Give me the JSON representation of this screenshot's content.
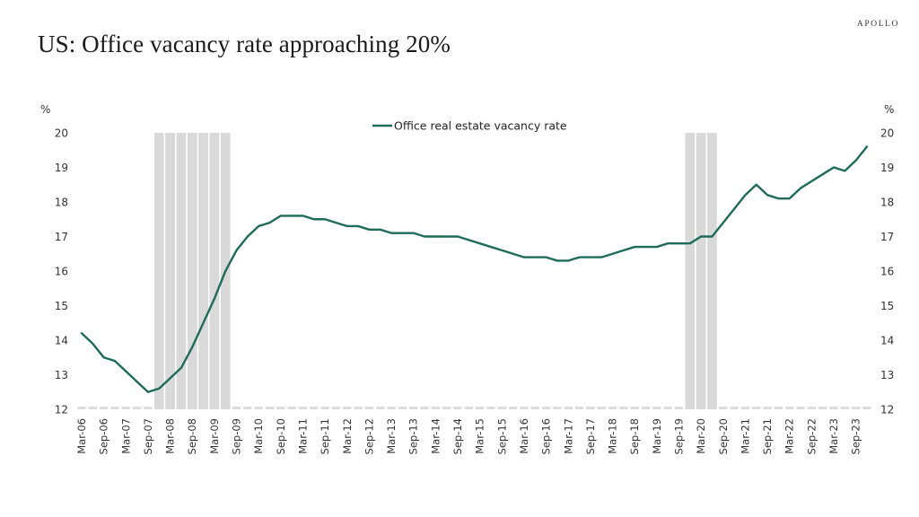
{
  "header": {
    "title": "US: Office vacancy rate approaching 20%",
    "brand": "APOLLO"
  },
  "chart_data": {
    "type": "line",
    "title": "US: Office vacancy rate approaching 20%",
    "xlabel": "",
    "ylabel": "%",
    "ylabel_right": "%",
    "ylim": [
      12,
      20
    ],
    "yticks": [
      12,
      13,
      14,
      15,
      16,
      17,
      18,
      19,
      20
    ],
    "grid": false,
    "legend": {
      "position": "top-center",
      "entries": [
        "Office real estate vacancy rate"
      ]
    },
    "colors": {
      "line": "#1f6b5a",
      "recession": "#d9d9d9"
    },
    "frequency": "quarterly",
    "x_start": "Mar-06",
    "x_end": "Dec-23",
    "xtick_labels": [
      "Mar-06",
      "Sep-06",
      "Mar-07",
      "Sep-07",
      "Mar-08",
      "Sep-08",
      "Mar-09",
      "Sep-09",
      "Mar-10",
      "Sep-10",
      "Mar-11",
      "Sep-11",
      "Mar-12",
      "Sep-12",
      "Mar-13",
      "Sep-13",
      "Mar-14",
      "Sep-14",
      "Mar-15",
      "Sep-15",
      "Mar-16",
      "Sep-16",
      "Mar-17",
      "Sep-17",
      "Mar-18",
      "Sep-18",
      "Mar-19",
      "Sep-19",
      "Mar-20",
      "Sep-20",
      "Mar-21",
      "Sep-21",
      "Mar-22",
      "Sep-22",
      "Mar-23",
      "Sep-23"
    ],
    "recessions": [
      {
        "start_index": 7,
        "end_index": 13,
        "label": "Dec-07 to Jun-09"
      },
      {
        "start_index": 55,
        "end_index": 57,
        "label": "Dec-19 to Jun-20"
      }
    ],
    "series": [
      {
        "name": "Office real estate vacancy rate",
        "values": [
          14.2,
          13.9,
          13.5,
          13.4,
          13.1,
          12.8,
          12.5,
          12.6,
          12.9,
          13.2,
          13.8,
          14.5,
          15.2,
          16.0,
          16.6,
          17.0,
          17.3,
          17.4,
          17.6,
          17.6,
          17.6,
          17.5,
          17.5,
          17.4,
          17.3,
          17.3,
          17.2,
          17.2,
          17.1,
          17.1,
          17.1,
          17.0,
          17.0,
          17.0,
          17.0,
          16.9,
          16.8,
          16.7,
          16.6,
          16.5,
          16.4,
          16.4,
          16.4,
          16.3,
          16.3,
          16.4,
          16.4,
          16.4,
          16.5,
          16.6,
          16.7,
          16.7,
          16.7,
          16.8,
          16.8,
          16.8,
          17.0,
          17.0,
          17.4,
          17.8,
          18.2,
          18.5,
          18.2,
          18.1,
          18.1,
          18.4,
          18.6,
          18.8,
          19.0,
          18.9,
          19.2,
          19.6
        ]
      }
    ]
  }
}
